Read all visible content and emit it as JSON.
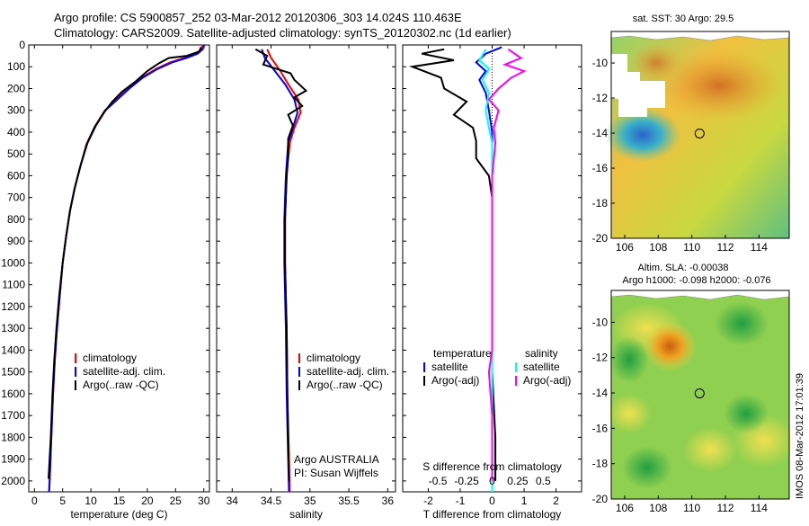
{
  "header": {
    "title_line1": "Argo profile: CS 5900857_252 03-Mar-2012 20120306_303 14.024S 110.463E",
    "title_line2": "Climatology: CARS2009. Satellite-adjusted climatology: synTS_20120302.nc (1d earlier)"
  },
  "side_label": "IMOS 08-Mar-2012 17:01:39",
  "colors": {
    "climatology": "#ff0000",
    "satellite": "#0000ff",
    "argo": "#000000",
    "salinity_satellite": "#00ffff",
    "salinity_argo": "#ff00ff"
  },
  "depth_axis": {
    "ylim": [
      0,
      2050
    ],
    "ticks": [
      0,
      100,
      200,
      300,
      400,
      500,
      600,
      700,
      800,
      900,
      1000,
      1100,
      1200,
      1300,
      1400,
      1500,
      1600,
      1700,
      1800,
      1900,
      2000
    ]
  },
  "chart_data": [
    {
      "id": "temperature",
      "type": "line",
      "xlabel": "temperature (deg C)",
      "ylabel": "",
      "xlim": [
        -1,
        31
      ],
      "ylim": [
        0,
        2050
      ],
      "xticks": [
        0,
        5,
        10,
        15,
        20,
        25,
        30
      ],
      "legend": {
        "placement": "lower-center",
        "entries": [
          "climatology",
          "satellite-adj. clim.",
          "Argo(..raw -QC)"
        ]
      },
      "series": [
        {
          "name": "climatology",
          "color": "#ff0000",
          "points": [
            [
              29.8,
              0
            ],
            [
              29.6,
              20
            ],
            [
              28.5,
              40
            ],
            [
              26.5,
              60
            ],
            [
              24,
              80
            ],
            [
              21.5,
              110
            ],
            [
              19,
              150
            ],
            [
              16.5,
              200
            ],
            [
              14.5,
              250
            ],
            [
              12.5,
              300
            ],
            [
              10.8,
              370
            ],
            [
              9.3,
              450
            ],
            [
              8.2,
              550
            ],
            [
              7.2,
              650
            ],
            [
              6.3,
              760
            ],
            [
              5.6,
              880
            ],
            [
              5,
              1000
            ],
            [
              4.5,
              1150
            ],
            [
              4,
              1300
            ],
            [
              3.6,
              1450
            ],
            [
              3.3,
              1600
            ],
            [
              3,
              1800
            ],
            [
              2.7,
              2000
            ],
            [
              2.6,
              2050
            ]
          ]
        },
        {
          "name": "satellite-adj. clim.",
          "color": "#0000ff",
          "points": [
            [
              30.1,
              0
            ],
            [
              29.8,
              20
            ],
            [
              28.9,
              40
            ],
            [
              26.9,
              60
            ],
            [
              24.4,
              80
            ],
            [
              21.8,
              110
            ],
            [
              19.2,
              150
            ],
            [
              16.8,
              200
            ],
            [
              14.7,
              250
            ],
            [
              12.6,
              300
            ],
            [
              10.9,
              370
            ],
            [
              9.4,
              450
            ],
            [
              8.2,
              550
            ],
            [
              7.2,
              650
            ],
            [
              6.3,
              760
            ],
            [
              5.6,
              880
            ],
            [
              5,
              1000
            ],
            [
              4.5,
              1150
            ],
            [
              4,
              1300
            ],
            [
              3.6,
              1450
            ],
            [
              3.3,
              1600
            ],
            [
              3,
              1800
            ],
            [
              2.7,
              2000
            ],
            [
              2.6,
              2050
            ]
          ]
        },
        {
          "name": "Argo(..raw -QC)",
          "color": "#000000",
          "points": [
            [
              29.5,
              10
            ],
            [
              29.2,
              30
            ],
            [
              27,
              50
            ],
            [
              23.8,
              60
            ],
            [
              22,
              85
            ],
            [
              20,
              120
            ],
            [
              17.8,
              170
            ],
            [
              15.5,
              215
            ],
            [
              13.8,
              260
            ],
            [
              12.3,
              310
            ],
            [
              10.6,
              380
            ],
            [
              9.2,
              460
            ],
            [
              8.1,
              560
            ],
            [
              7.1,
              660
            ],
            [
              6.3,
              760
            ],
            [
              5.6,
              880
            ],
            [
              5,
              1000
            ],
            [
              4.4,
              1150
            ],
            [
              3.9,
              1300
            ],
            [
              3.5,
              1450
            ],
            [
              3.2,
              1600
            ],
            [
              2.9,
              1800
            ],
            [
              2.5,
              1990
            ]
          ]
        }
      ]
    },
    {
      "id": "salinity",
      "type": "line",
      "xlabel": "salinity",
      "ylabel": "",
      "xlim": [
        33.8,
        36.1
      ],
      "ylim": [
        0,
        2050
      ],
      "xticks": [
        34,
        34.5,
        35,
        35.5,
        36
      ],
      "legend": {
        "placement": "lower-center",
        "entries": [
          "climatology",
          "satellite-adj. clim.",
          "Argo(..raw -QC)"
        ]
      },
      "annotation": [
        "Argo AUSTRALIA",
        "PI: Susan Wijffels"
      ],
      "series": [
        {
          "name": "climatology",
          "color": "#ff0000",
          "points": [
            [
              34.45,
              20
            ],
            [
              34.5,
              60
            ],
            [
              34.62,
              120
            ],
            [
              34.72,
              180
            ],
            [
              34.85,
              250
            ],
            [
              34.88,
              310
            ],
            [
              34.8,
              380
            ],
            [
              34.74,
              450
            ],
            [
              34.7,
              600
            ],
            [
              34.68,
              800
            ],
            [
              34.68,
              1000
            ],
            [
              34.7,
              1300
            ],
            [
              34.71,
              1600
            ],
            [
              34.73,
              1900
            ],
            [
              34.74,
              2050
            ]
          ]
        },
        {
          "name": "satellite-adj. clim.",
          "color": "#0000ff",
          "points": [
            [
              34.38,
              20
            ],
            [
              34.42,
              60
            ],
            [
              34.55,
              120
            ],
            [
              34.68,
              180
            ],
            [
              34.8,
              250
            ],
            [
              34.84,
              310
            ],
            [
              34.78,
              380
            ],
            [
              34.72,
              450
            ],
            [
              34.69,
              600
            ],
            [
              34.67,
              800
            ],
            [
              34.67,
              1000
            ],
            [
              34.69,
              1300
            ],
            [
              34.7,
              1600
            ],
            [
              34.72,
              1900
            ],
            [
              34.73,
              2050
            ]
          ]
        },
        {
          "name": "Argo(..raw -QC)",
          "color": "#000000",
          "points": [
            [
              34.3,
              20
            ],
            [
              34.45,
              50
            ],
            [
              34.4,
              90
            ],
            [
              34.75,
              130
            ],
            [
              34.8,
              160
            ],
            [
              34.95,
              210
            ],
            [
              34.8,
              240
            ],
            [
              34.9,
              280
            ],
            [
              34.72,
              320
            ],
            [
              34.78,
              370
            ],
            [
              34.72,
              430
            ],
            [
              34.72,
              500
            ],
            [
              34.7,
              600
            ],
            [
              34.68,
              800
            ],
            [
              34.68,
              1000
            ],
            [
              34.7,
              1300
            ],
            [
              34.71,
              1600
            ],
            [
              34.72,
              1800
            ],
            [
              34.73,
              2000
            ]
          ]
        }
      ]
    },
    {
      "id": "difference",
      "type": "line",
      "xlabel": "T difference from climatology",
      "top_xlabel": "S difference from climatology",
      "ylabel": "",
      "xlim": [
        -2.8,
        2.8
      ],
      "ylim": [
        0,
        2050
      ],
      "xticks": [
        -2,
        -1,
        0,
        1,
        2
      ],
      "top_xticks": [
        "-0.5",
        "-0.25",
        "0",
        "0.25",
        "0.5"
      ],
      "legend": {
        "placement": "lower-center",
        "temperature_title": "temperature",
        "temperature_entries": [
          "satellite",
          "Argo(-adj)"
        ],
        "salinity_title": "salinity",
        "salinity_entries": [
          "satellite",
          "Argo(-adj)"
        ]
      },
      "series": [
        {
          "name": "satellite",
          "group": "temperature",
          "color": "#0000ff",
          "points": [
            [
              0.3,
              10
            ],
            [
              -0.2,
              40
            ],
            [
              -0.5,
              80
            ],
            [
              -0.2,
              120
            ],
            [
              -0.4,
              160
            ],
            [
              -0.2,
              220
            ],
            [
              -0.1,
              300
            ],
            [
              0,
              400
            ],
            [
              0,
              600
            ],
            [
              0,
              1000
            ],
            [
              0,
              1500
            ],
            [
              0,
              2050
            ]
          ]
        },
        {
          "name": "Argo(-adj)",
          "group": "temperature",
          "color": "#000000",
          "points": [
            [
              -1.5,
              20
            ],
            [
              -2.2,
              40
            ],
            [
              -1.2,
              70
            ],
            [
              -2.5,
              100
            ],
            [
              -1.6,
              150
            ],
            [
              -1.5,
              200
            ],
            [
              -0.8,
              260
            ],
            [
              -1.2,
              320
            ],
            [
              -0.6,
              380
            ],
            [
              -0.5,
              440
            ],
            [
              -0.5,
              520
            ],
            [
              -0.1,
              600
            ],
            [
              0,
              700
            ],
            [
              0,
              800
            ],
            [
              0,
              900
            ],
            [
              0,
              1000
            ],
            [
              0,
              1200
            ],
            [
              0,
              1500
            ],
            [
              0.1,
              1800
            ],
            [
              0.1,
              2000
            ]
          ]
        },
        {
          "name": "satellite",
          "group": "salinity",
          "color": "#00ffff",
          "points": [
            [
              -0.2,
              20
            ],
            [
              -0.4,
              70
            ],
            [
              -0.1,
              110
            ],
            [
              -0.3,
              160
            ],
            [
              -0.1,
              220
            ],
            [
              -0.2,
              300
            ],
            [
              -0.1,
              380
            ],
            [
              0,
              450
            ],
            [
              0,
              600
            ],
            [
              0,
              1000
            ],
            [
              0,
              1500
            ],
            [
              0,
              2050
            ]
          ]
        },
        {
          "name": "Argo(-adj)",
          "group": "salinity",
          "color": "#ff00ff",
          "points": [
            [
              0.5,
              20
            ],
            [
              0.9,
              60
            ],
            [
              0.4,
              90
            ],
            [
              1.0,
              120
            ],
            [
              0.6,
              150
            ],
            [
              0.2,
              200
            ],
            [
              -0.1,
              250
            ],
            [
              0.2,
              300
            ],
            [
              0.05,
              380
            ],
            [
              0.1,
              450
            ],
            [
              0,
              600
            ],
            [
              0,
              1000
            ],
            [
              0,
              1400
            ],
            [
              -0.1,
              1500
            ],
            [
              0,
              1700
            ],
            [
              0,
              2000
            ]
          ]
        }
      ]
    }
  ],
  "maps": {
    "sst": {
      "title": "sat. SST: 30 Argo: 29.5",
      "xticks": [
        106,
        108,
        110,
        112,
        114
      ],
      "yticks": [
        -10,
        -12,
        -14,
        -16,
        -18,
        -20
      ],
      "xlim": [
        105.2,
        115.8
      ],
      "ylim": [
        -20,
        -8.2
      ],
      "float_position": [
        110.463,
        -14.024
      ]
    },
    "sla": {
      "title_line1": "Altim. SLA: -0.00038",
      "title_line2": "Argo h1000: -0.098 h2000: -0.076",
      "xticks": [
        106,
        108,
        110,
        112,
        114
      ],
      "yticks": [
        -10,
        -12,
        -14,
        -16,
        -18,
        -20
      ],
      "xlim": [
        105.2,
        115.8
      ],
      "ylim": [
        -20,
        -8.2
      ],
      "float_position": [
        110.463,
        -14.024
      ]
    }
  }
}
